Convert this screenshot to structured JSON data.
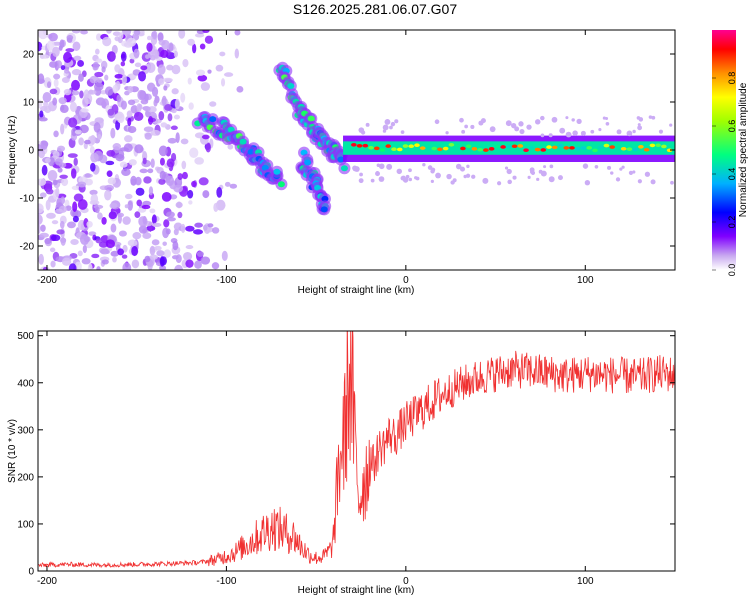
{
  "title": "S126.2025.281.06.07.G07",
  "chart_data": [
    {
      "type": "heatmap",
      "xlabel": "Height of straight line (km)",
      "ylabel": "Frequency (Hz)",
      "xlim": [
        -205,
        150
      ],
      "ylim": [
        -25,
        25
      ],
      "xticks": [
        -200,
        -100,
        0,
        100
      ],
      "yticks": [
        -20,
        -10,
        0,
        10,
        20
      ],
      "colorbar": {
        "label": "Normalized spectral amplitude",
        "range": [
          0,
          1
        ],
        "ticks": [
          "0.0",
          "0.2",
          "0.4",
          "0.6",
          "0.8"
        ],
        "colors": [
          "#e8dcf8",
          "#8000ff",
          "#0000ff",
          "#00c8ff",
          "#00ff66",
          "#ffff00",
          "#ff9000",
          "#ff0000",
          "#ff00aa"
        ]
      },
      "features": [
        {
          "name": "carrier line",
          "x_range": [
            -35,
            150
          ],
          "frequency": 0.5,
          "amplitude": 0.7
        },
        {
          "name": "descending branch 1",
          "points": [
            [
              -115,
              6
            ],
            [
              -100,
              4
            ],
            [
              -90,
              1
            ],
            [
              -80,
              -3
            ],
            [
              -70,
              -6
            ]
          ]
        },
        {
          "name": "descending branch 2",
          "points": [
            [
              -70,
              17
            ],
            [
              -60,
              9
            ],
            [
              -50,
              4
            ],
            [
              -42,
              0
            ],
            [
              -35,
              -3
            ]
          ]
        },
        {
          "name": "secondary trace",
          "points": [
            [
              -58,
              -2
            ],
            [
              -50,
              -7
            ],
            [
              -45,
              -13
            ]
          ]
        },
        {
          "name": "noise",
          "x_range": [
            -205,
            -110
          ],
          "frequency_range": [
            -25,
            25
          ],
          "amplitude": 0.15
        }
      ]
    },
    {
      "type": "line",
      "xlabel": "Height of straight line (km)",
      "ylabel": "SNR (10 * v/v)",
      "xlim": [
        -205,
        150
      ],
      "ylim": [
        0,
        510
      ],
      "xticks": [
        -200,
        -100,
        0,
        100
      ],
      "yticks": [
        0,
        100,
        200,
        300,
        400,
        500
      ],
      "color": "#f03030",
      "series": [
        {
          "name": "SNR",
          "x": [
            -205,
            -190,
            -170,
            -150,
            -130,
            -115,
            -105,
            -95,
            -88,
            -80,
            -74,
            -70,
            -66,
            -62,
            -58,
            -54,
            -50,
            -46,
            -42,
            -40,
            -38,
            -36,
            -34,
            -32,
            -30,
            -28,
            -26,
            -24,
            -22,
            -20,
            -18,
            -15,
            -12,
            -9,
            -6,
            -3,
            0,
            5,
            10,
            15,
            20,
            25,
            30,
            40,
            50,
            60,
            70,
            80,
            90,
            100,
            110,
            120,
            130,
            140,
            150
          ],
          "y": [
            12,
            14,
            13,
            14,
            16,
            18,
            25,
            40,
            58,
            80,
            95,
            88,
            80,
            72,
            50,
            35,
            28,
            30,
            45,
            75,
            190,
            260,
            290,
            420,
            380,
            240,
            150,
            185,
            205,
            240,
            225,
            260,
            270,
            290,
            285,
            300,
            315,
            330,
            345,
            360,
            375,
            385,
            395,
            410,
            420,
            428,
            425,
            420,
            415,
            420,
            418,
            415,
            412,
            420,
            418
          ]
        }
      ]
    }
  ]
}
